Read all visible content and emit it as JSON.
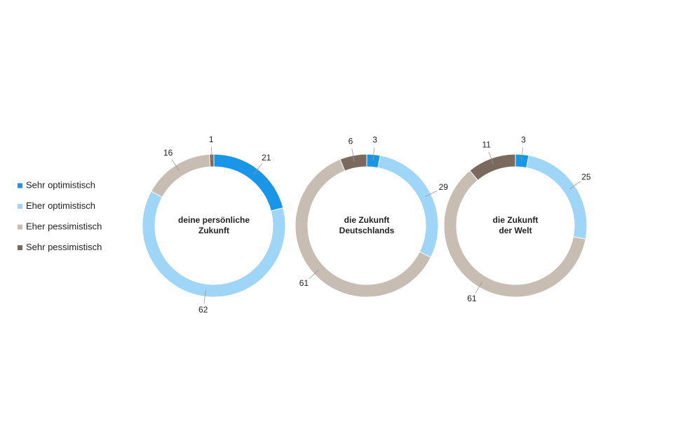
{
  "legend": {
    "labels": [
      "Sehr optimistisch",
      "Eher optimistisch",
      "Eher pessimistisch",
      "Sehr pessimistisch"
    ],
    "colors": [
      "#1a96e8",
      "#9fd5f7",
      "#c8bdb3",
      "#7a6a5e"
    ]
  },
  "chart_data": [
    {
      "type": "donut",
      "title": [
        "deine persönliche",
        "Zukunft"
      ],
      "values": [
        21,
        62,
        16,
        1
      ]
    },
    {
      "type": "donut",
      "title": [
        "die Zukunft",
        "Deutschlands"
      ],
      "values": [
        3,
        29,
        61,
        6
      ]
    },
    {
      "type": "donut",
      "title": [
        "die Zukunft",
        "der Welt"
      ],
      "values": [
        3,
        25,
        61,
        11
      ]
    }
  ]
}
